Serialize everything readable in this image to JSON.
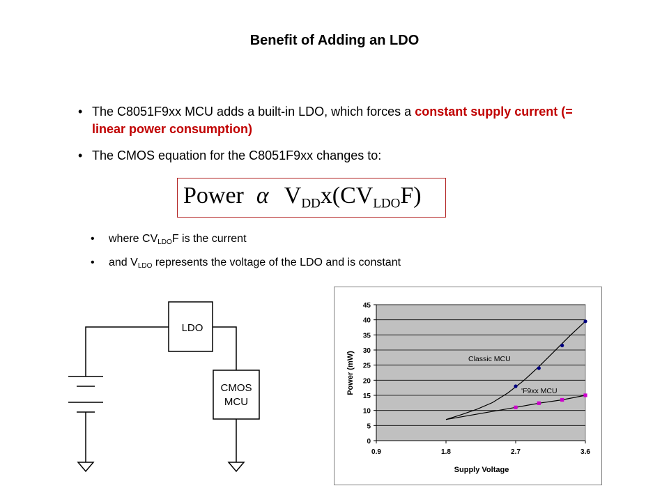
{
  "slide": {
    "title": "Benefit of Adding an LDO",
    "bullet1": {
      "text_a": "The C8051F9xx MCU adds a built-in LDO, which forces a ",
      "text_highlight": "constant supply current (= linear power consumption)"
    },
    "bullet2": "The CMOS equation for the C8051F9xx changes to:",
    "equation": {
      "power": "Power",
      "alpha": "α",
      "v": "V",
      "dd": "DD",
      "mid": "x(CV",
      "ldo": "LDO",
      "end": "F)"
    },
    "sub1": {
      "a": "where CV",
      "sub": "LDO",
      "b": "F is the current"
    },
    "sub2": {
      "a": "and V",
      "sub": "LDO",
      "b": " represents the voltage of the LDO and is constant"
    },
    "bullet_char": "•"
  },
  "circuit": {
    "ldo_label": "LDO",
    "mcu_label_1": "CMOS",
    "mcu_label_2": "MCU"
  },
  "chart_data": {
    "type": "line",
    "xlabel": "Supply Voltage",
    "ylabel": "Power (mW)",
    "x_ticks": [
      "0.9",
      "1.8",
      "2.7",
      "3.6"
    ],
    "y_ticks": [
      "0",
      "5",
      "10",
      "15",
      "20",
      "25",
      "30",
      "35",
      "40",
      "45"
    ],
    "xlim": [
      0.9,
      3.6
    ],
    "ylim": [
      0,
      45
    ],
    "grid": true,
    "plot_background": "#c0c0c0",
    "series": [
      {
        "name": "Classic MCU",
        "color": "#000080",
        "curve": [
          [
            1.8,
            7
          ],
          [
            2.0,
            8.6
          ],
          [
            2.2,
            10.4
          ],
          [
            2.4,
            12.6
          ],
          [
            2.6,
            15.8
          ],
          [
            2.8,
            19.8
          ],
          [
            3.0,
            24.5
          ],
          [
            3.2,
            29.6
          ],
          [
            3.4,
            34.7
          ],
          [
            3.6,
            39.5
          ]
        ],
        "markers": [
          [
            2.7,
            18
          ],
          [
            3.0,
            24
          ],
          [
            3.3,
            31.5
          ],
          [
            3.6,
            39.5
          ]
        ]
      },
      {
        "name": "'F9xx MCU",
        "color": "#cc00cc",
        "curve": [
          [
            1.8,
            7
          ],
          [
            2.7,
            11
          ],
          [
            3.0,
            12.4
          ],
          [
            3.3,
            13.5
          ],
          [
            3.6,
            15
          ]
        ],
        "markers": [
          [
            2.7,
            11
          ],
          [
            3.0,
            12.4
          ],
          [
            3.3,
            13.5
          ],
          [
            3.6,
            15
          ]
        ]
      }
    ]
  }
}
